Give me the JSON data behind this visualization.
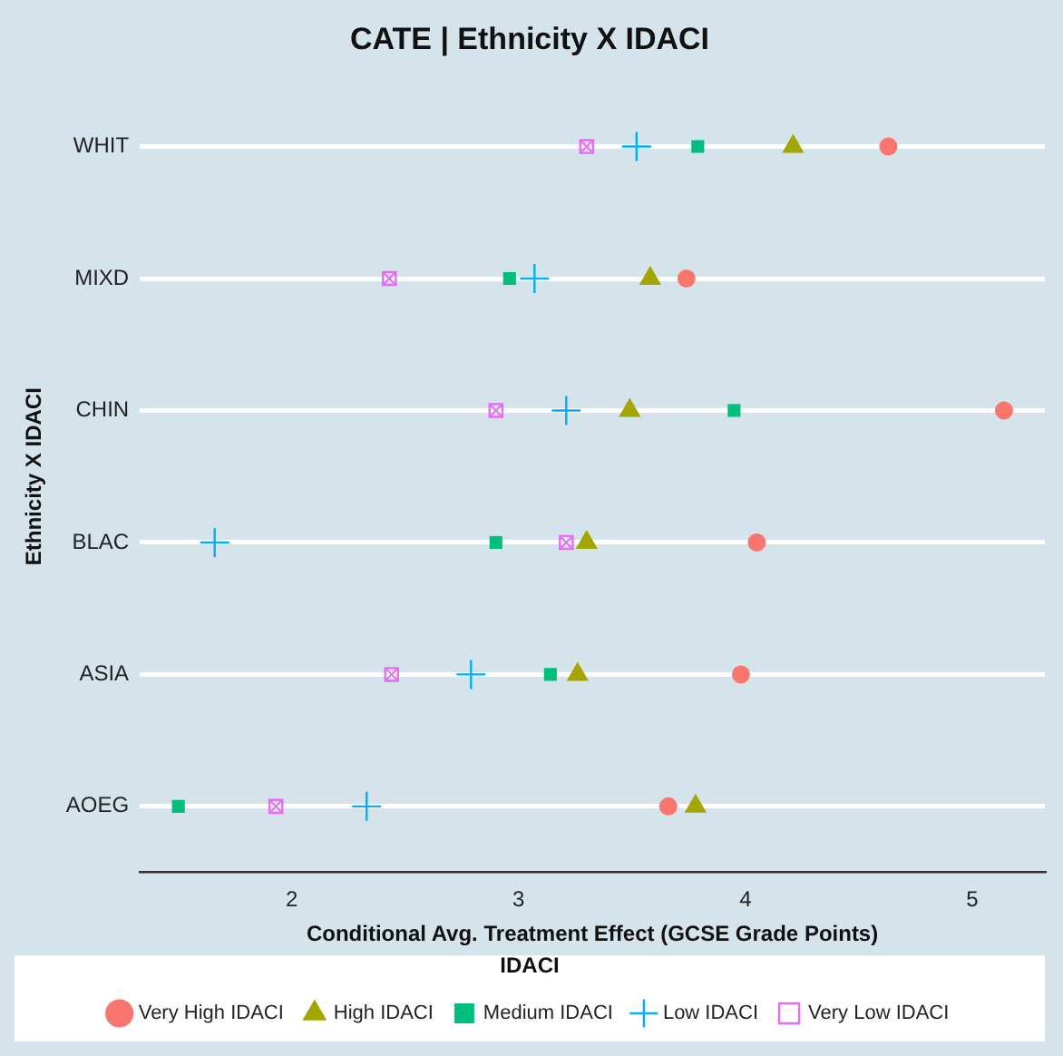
{
  "chart_data": {
    "type": "scatter",
    "orientation": "horizontal",
    "title": "CATE | Ethnicity X IDACI",
    "xlabel": "Conditional Avg. Treatment Effect (GCSE Grade Points)",
    "ylabel": "Ethnicity X IDACI",
    "legend_title": "IDACI",
    "categories": [
      "WHIT",
      "MIXD",
      "CHIN",
      "BLAC",
      "ASIA",
      "AOEG"
    ],
    "xlim": [
      1.33,
      5.32
    ],
    "xticks": [
      2,
      3,
      4,
      5
    ],
    "grid": "y",
    "legend": "bottom",
    "series": [
      {
        "name": "Very High IDACI",
        "color": "#f8766d",
        "marker": "circle",
        "values": [
          4.63,
          3.74,
          5.14,
          4.05,
          3.98,
          3.66
        ]
      },
      {
        "name": "High IDACI",
        "color": "#a3a500",
        "marker": "triangle",
        "values": [
          4.21,
          3.58,
          3.49,
          3.3,
          3.26,
          3.78
        ]
      },
      {
        "name": "Medium IDACI",
        "color": "#00bf7d",
        "marker": "square",
        "values": [
          3.79,
          2.96,
          3.95,
          2.9,
          3.14,
          1.5
        ]
      },
      {
        "name": "Low IDACI",
        "color": "#00b0f6",
        "marker": "cross",
        "values": [
          3.52,
          3.07,
          3.21,
          1.66,
          2.79,
          2.33
        ]
      },
      {
        "name": "Very Low IDACI",
        "color": "#e76bf3",
        "marker": "square",
        "values": [
          3.3,
          2.43,
          2.9,
          3.21,
          2.44,
          1.93
        ]
      }
    ]
  }
}
